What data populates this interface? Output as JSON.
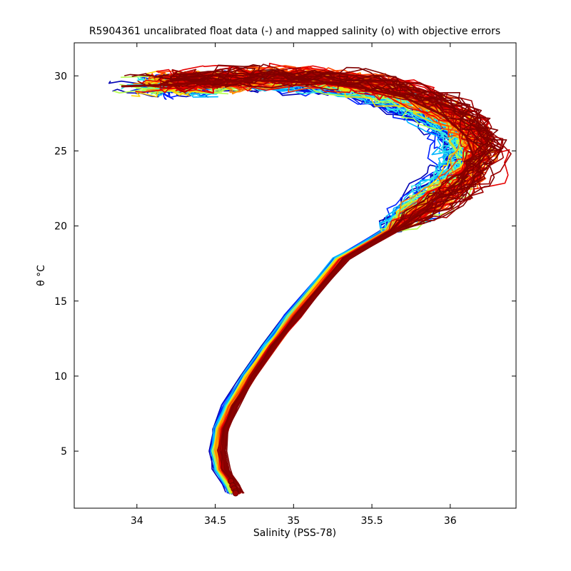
{
  "chart_data": {
    "type": "line",
    "title": "R5904361 uncalibrated float data (-) and mapped salinity (o) with objective errors",
    "xlabel": "Salinity (PSS-78)",
    "ylabel": "θ °C",
    "xlim": [
      33.6,
      36.42
    ],
    "ylim": [
      1.2,
      32.2
    ],
    "xticks": [
      34,
      34.5,
      35,
      35.5,
      36
    ],
    "xtick_labels": [
      "34",
      "34.5",
      "35",
      "35.5",
      "36"
    ],
    "yticks": [
      5,
      10,
      15,
      20,
      25,
      30
    ],
    "ytick_labels": [
      "5",
      "10",
      "15",
      "20",
      "25",
      "30"
    ],
    "grid": false,
    "colormap": [
      "#0000b4",
      "#0022ff",
      "#00b4ff",
      "#33e6e6",
      "#b4ff4a",
      "#ffd700",
      "#ff8c00",
      "#ff4500",
      "#e60000",
      "#a00000",
      "#800000"
    ],
    "series_count": 120,
    "upper_branch": {
      "salinity": [
        33.9,
        34.2,
        34.5,
        34.8,
        35.1,
        35.4,
        35.7,
        35.95,
        36.1,
        36.15,
        36.05,
        35.85,
        35.6,
        35.3
      ],
      "theta": [
        29.3,
        29.4,
        29.6,
        29.7,
        29.6,
        29.3,
        28.6,
        27.4,
        26.0,
        24.6,
        23.0,
        21.3,
        19.6,
        17.8
      ]
    },
    "lower_branch": {
      "salinity": [
        35.3,
        35.0,
        34.85,
        34.72,
        34.6,
        34.54,
        34.52,
        34.54,
        34.6,
        34.63
      ],
      "theta": [
        17.8,
        14.0,
        12.0,
        10.0,
        8.0,
        6.5,
        5.0,
        3.8,
        2.8,
        2.2
      ]
    },
    "mapped_salinity_points": {
      "salinity": [
        34.6,
        34.61,
        34.62,
        34.63,
        34.63
      ],
      "theta": [
        3.0,
        2.7,
        2.5,
        2.3,
        2.2
      ]
    }
  }
}
